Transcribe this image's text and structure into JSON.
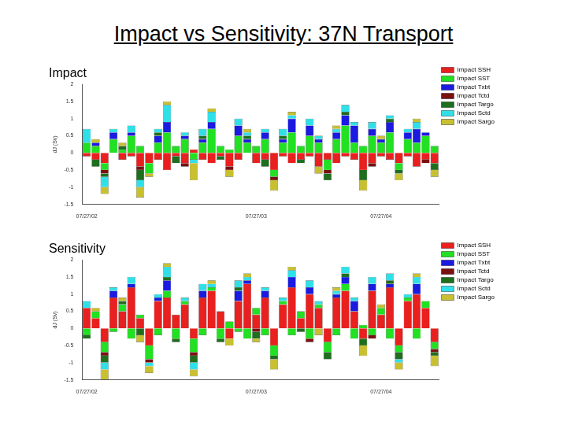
{
  "title": "Impact vs Sensitivity: 37N Transport",
  "chart_data": [
    {
      "type": "bar",
      "title": "Impact",
      "y_label": "dJ (Sv)",
      "stacked": true,
      "grid": false,
      "legend": "right",
      "categories": [
        "07/27/02",
        null,
        null,
        null,
        null,
        null,
        null,
        null,
        null,
        null,
        null,
        null,
        null,
        null,
        null,
        null,
        null,
        null,
        null,
        "07/27/03",
        null,
        null,
        null,
        null,
        null,
        null,
        null,
        null,
        null,
        null,
        null,
        null,
        null,
        "07/27/04",
        null,
        null,
        null,
        null,
        null,
        null
      ],
      "ylim": [
        -1.5,
        2
      ],
      "yticks": [
        -1.5,
        -1,
        -0.5,
        0,
        0.5,
        1,
        1.5,
        2
      ],
      "series": [
        {
          "name": "Impact SSH",
          "color": "#e8201f",
          "values": [
            -0.1,
            -0.2,
            -0.3,
            0,
            -0.2,
            -0.1,
            -0.4,
            -0.3,
            -0.2,
            -0.5,
            -0.1,
            -0.3,
            0.1,
            -0.2,
            -0.3,
            -0.1,
            -0.4,
            -0.2,
            0,
            -0.3,
            -0.2,
            -0.5,
            -0.1,
            -0.3,
            -0.2,
            -0.1,
            -0.4,
            -0.2,
            -0.3,
            -0.1,
            -0.2,
            -0.5,
            -0.3,
            -0.1,
            -0.2,
            -0.3,
            -0.1,
            -0.4,
            -0.2,
            -0.3
          ]
        },
        {
          "name": "Impact SST",
          "color": "#22e022",
          "values": [
            0.3,
            0.2,
            -0.2,
            0.4,
            0.1,
            0.5,
            0.2,
            -0.3,
            0.3,
            0.6,
            0.2,
            0.4,
            -0.2,
            0.3,
            0.7,
            0.2,
            0.1,
            0.5,
            0.3,
            0.2,
            0.4,
            -0.2,
            0.3,
            0.6,
            0.2,
            0.5,
            0.3,
            -0.3,
            0.4,
            0.8,
            0.3,
            0.2,
            0.5,
            0.3,
            0.6,
            -0.2,
            0.4,
            0.3,
            0.5,
            0.2
          ]
        },
        {
          "name": "Impact Txbt",
          "color": "#1a1ae0",
          "values": [
            0,
            0.1,
            0,
            0.2,
            0,
            0.1,
            0,
            0,
            0.2,
            0.3,
            0,
            0.1,
            0,
            0.1,
            0.2,
            0,
            0,
            0.3,
            0.1,
            0,
            0.2,
            0,
            0.1,
            0.4,
            0,
            0.3,
            0.1,
            0,
            0.2,
            0.3,
            0.5,
            0,
            0.2,
            0.1,
            0.3,
            0,
            0.2,
            0.4,
            0.1,
            0
          ]
        },
        {
          "name": "Impact Tctd",
          "color": "#7a1010",
          "values": [
            0,
            0,
            -0.1,
            0,
            0,
            0,
            -0.1,
            0,
            0,
            0,
            0,
            -0.1,
            0,
            0,
            0,
            0,
            -0.1,
            0,
            0,
            0,
            0,
            -0.1,
            0,
            0,
            0,
            0,
            0,
            -0.1,
            0,
            0,
            0,
            0,
            -0.1,
            0,
            0,
            0,
            0,
            0,
            -0.1,
            0
          ]
        },
        {
          "name": "Impact Targo",
          "color": "#1e6e1e",
          "values": [
            0,
            -0.2,
            -0.1,
            0,
            0.1,
            0,
            -0.3,
            0,
            0.1,
            0,
            -0.2,
            0,
            0,
            0.1,
            0,
            -0.1,
            0,
            0,
            0.1,
            0,
            -0.2,
            0,
            0.1,
            0,
            -0.1,
            0,
            0,
            -0.2,
            0,
            0.1,
            0,
            -0.3,
            0,
            0,
            0.1,
            -0.1,
            0,
            0,
            0,
            -0.2
          ]
        },
        {
          "name": "Impact Sctd",
          "color": "#30e0e8",
          "values": [
            0.4,
            0,
            -0.3,
            0.1,
            0,
            0.2,
            -0.2,
            0,
            0.1,
            0.5,
            0,
            0.1,
            -0.1,
            0.2,
            0.3,
            0,
            0,
            0.2,
            0.1,
            0,
            0.1,
            0,
            0.2,
            0.1,
            0,
            0.2,
            0.1,
            0,
            0.1,
            0.2,
            0.1,
            0,
            0.2,
            0,
            0.1,
            0,
            0.1,
            0.2,
            0,
            0
          ]
        },
        {
          "name": "Impact Sargo",
          "color": "#c8c030",
          "values": [
            0,
            0.1,
            -0.2,
            0,
            0.1,
            0,
            -0.3,
            -0.1,
            0,
            0.1,
            0,
            0,
            -0.5,
            0,
            0.1,
            0,
            -0.2,
            0,
            0.1,
            0,
            0,
            -0.3,
            0,
            0.1,
            0,
            0,
            -0.2,
            0,
            0.1,
            0,
            0,
            -0.3,
            0,
            0.1,
            0,
            -0.2,
            0,
            0.1,
            0,
            -0.2
          ]
        }
      ]
    },
    {
      "type": "bar",
      "title": "Sensitivity",
      "y_label": "dJ (Sv)",
      "stacked": true,
      "grid": false,
      "legend": "right",
      "categories": [
        "07/27/02",
        null,
        null,
        null,
        null,
        null,
        null,
        null,
        null,
        null,
        null,
        null,
        null,
        null,
        null,
        null,
        null,
        null,
        null,
        "07/27/03",
        null,
        null,
        null,
        null,
        null,
        null,
        null,
        null,
        null,
        null,
        null,
        null,
        null,
        "07/27/04",
        null,
        null,
        null,
        null,
        null,
        null
      ],
      "ylim": [
        -1.5,
        2
      ],
      "yticks": [
        -1.5,
        -1,
        -0.5,
        0,
        0.5,
        1,
        1.5,
        2
      ],
      "series": [
        {
          "name": "Impact SSH",
          "color": "#e8201f",
          "values": [
            0.6,
            0.3,
            -0.4,
            0.9,
            0.5,
            1.2,
            0.3,
            -0.5,
            0.8,
            0.9,
            0.4,
            0.7,
            -0.3,
            0.9,
            1.1,
            0.5,
            -0.3,
            0.8,
            1.3,
            0.4,
            0.9,
            -0.5,
            0.7,
            1.2,
            0.3,
            1.0,
            0.6,
            -0.4,
            0.9,
            1.1,
            0.5,
            -0.3,
            1.1,
            0.4,
            1.2,
            -0.5,
            0.8,
            1.0,
            0.6,
            -0.4
          ]
        },
        {
          "name": "Impact SST",
          "color": "#22e022",
          "values": [
            -0.2,
            0.2,
            -0.3,
            -0.1,
            0.2,
            -0.3,
            0.1,
            -0.4,
            -0.2,
            0.2,
            -0.3,
            0.1,
            -0.4,
            -0.2,
            0.1,
            -0.3,
            0.2,
            -0.1,
            -0.3,
            0.2,
            -0.2,
            -0.3,
            0.1,
            -0.2,
            0.2,
            -0.3,
            0.1,
            -0.3,
            -0.2,
            0.2,
            -0.3,
            0.1,
            -0.2,
            0.2,
            -0.3,
            -0.2,
            0.1,
            -0.3,
            0.2,
            -0.2
          ]
        },
        {
          "name": "Impact Txbt",
          "color": "#1a1ae0",
          "values": [
            0,
            0,
            0,
            0.2,
            0,
            0.1,
            0,
            0,
            0.1,
            0.3,
            0,
            0,
            0,
            0.2,
            0,
            0,
            0,
            0.3,
            0.1,
            0,
            0.2,
            0,
            0,
            0.3,
            0,
            0.2,
            0,
            0,
            0.1,
            0.2,
            0.3,
            0,
            0.2,
            0,
            0.1,
            0,
            0,
            0.3,
            0,
            0
          ]
        },
        {
          "name": "Impact Tctd",
          "color": "#7a1010",
          "values": [
            0,
            0,
            -0.1,
            0,
            0,
            0,
            0,
            -0.1,
            0,
            0,
            0,
            0,
            -0.1,
            0,
            0,
            0,
            0,
            0,
            0,
            -0.1,
            0,
            0,
            0,
            0,
            0,
            -0.1,
            0,
            0,
            0,
            0,
            0,
            0,
            -0.1,
            0,
            0,
            0,
            0,
            0,
            0,
            -0.1
          ]
        },
        {
          "name": "Impact Targo",
          "color": "#1e6e1e",
          "values": [
            -0.1,
            0,
            -0.2,
            0,
            0.1,
            0,
            -0.2,
            0,
            0,
            0.1,
            -0.1,
            0,
            -0.2,
            0,
            0,
            -0.1,
            0,
            0.1,
            0,
            -0.2,
            0,
            -0.1,
            0,
            0,
            -0.1,
            0,
            0,
            -0.2,
            0,
            0.1,
            0,
            -0.2,
            0,
            0,
            0.1,
            -0.2,
            0,
            0,
            0,
            -0.1
          ]
        },
        {
          "name": "Impact Sctd",
          "color": "#30e0e8",
          "values": [
            0.2,
            0,
            -0.2,
            0.1,
            0,
            0.2,
            0,
            -0.1,
            0.1,
            0.3,
            0,
            0.1,
            -0.2,
            0.2,
            0.1,
            0,
            0,
            0.2,
            0.1,
            0,
            0.1,
            0,
            0.1,
            0.2,
            0,
            0.2,
            0.1,
            0,
            0.1,
            0.2,
            0.1,
            0,
            0.2,
            0,
            0.2,
            -0.1,
            0.1,
            0.2,
            0,
            0
          ]
        },
        {
          "name": "Impact Sargo",
          "color": "#c8c030",
          "values": [
            0,
            0.1,
            -0.3,
            0,
            0.1,
            0,
            -0.2,
            -0.2,
            0,
            0.1,
            0,
            0,
            -0.2,
            0,
            0.1,
            0,
            -0.2,
            0,
            0.1,
            -0.1,
            0,
            -0.3,
            0,
            0.1,
            0,
            0,
            -0.2,
            0,
            0.1,
            0,
            0,
            -0.3,
            0,
            0.1,
            0,
            -0.2,
            0,
            0.1,
            0,
            -0.3
          ]
        }
      ]
    }
  ]
}
